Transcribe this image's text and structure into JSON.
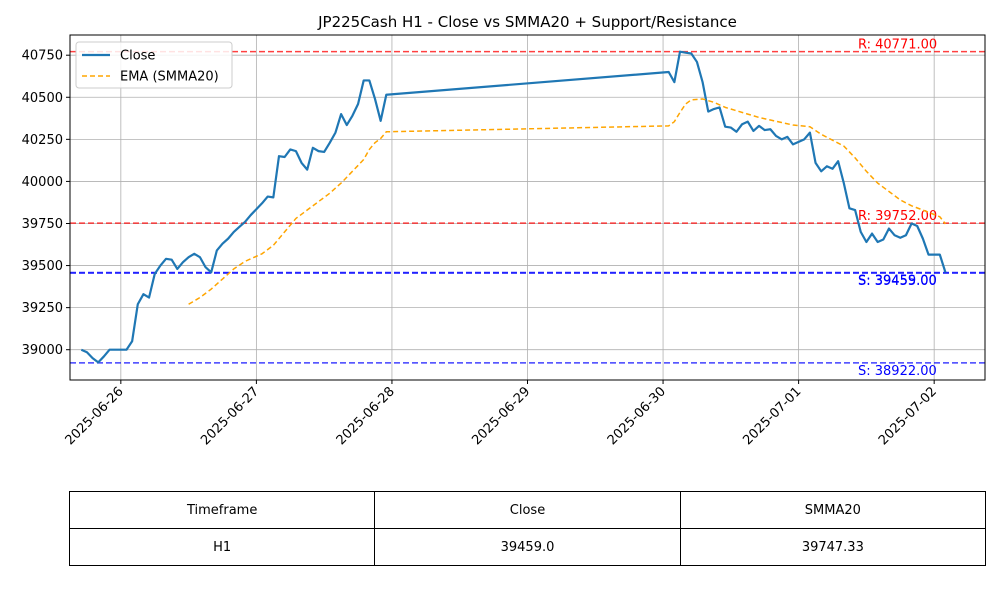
{
  "chart_data": {
    "type": "line",
    "title": "JP225Cash H1 - Close vs SMMA20 + Support/Resistance",
    "xlabel": "",
    "ylabel": "",
    "x_ticks": [
      "2025-06-26",
      "2025-06-27",
      "2025-06-28",
      "2025-06-29",
      "2025-06-30",
      "2025-07-01",
      "2025-07-02"
    ],
    "y_ticks": [
      39000,
      39250,
      39500,
      39750,
      40000,
      40250,
      40500,
      40750
    ],
    "ylim": [
      38820,
      40870
    ],
    "grid": true,
    "legend_position": "top-left",
    "series": [
      {
        "name": "Close",
        "color": "#1f77b4",
        "style": "solid",
        "points": [
          [
            "2025-06-25 17:00",
            39000
          ],
          [
            "2025-06-25 18:00",
            38985
          ],
          [
            "2025-06-25 19:00",
            38950
          ],
          [
            "2025-06-25 20:00",
            38925
          ],
          [
            "2025-06-25 21:00",
            38960
          ],
          [
            "2025-06-25 22:00",
            39000
          ],
          [
            "2025-06-25 23:00",
            39000
          ],
          [
            "2025-06-26 01:00",
            39000
          ],
          [
            "2025-06-26 02:00",
            39050
          ],
          [
            "2025-06-26 03:00",
            39270
          ],
          [
            "2025-06-26 04:00",
            39330
          ],
          [
            "2025-06-26 05:00",
            39310
          ],
          [
            "2025-06-26 06:00",
            39450
          ],
          [
            "2025-06-26 07:00",
            39500
          ],
          [
            "2025-06-26 08:00",
            39540
          ],
          [
            "2025-06-26 09:00",
            39535
          ],
          [
            "2025-06-26 10:00",
            39480
          ],
          [
            "2025-06-26 11:00",
            39520
          ],
          [
            "2025-06-26 12:00",
            39550
          ],
          [
            "2025-06-26 13:00",
            39570
          ],
          [
            "2025-06-26 14:00",
            39550
          ],
          [
            "2025-06-26 15:00",
            39490
          ],
          [
            "2025-06-26 16:00",
            39460
          ],
          [
            "2025-06-26 17:00",
            39590
          ],
          [
            "2025-06-26 18:00",
            39630
          ],
          [
            "2025-06-26 19:00",
            39660
          ],
          [
            "2025-06-26 20:00",
            39700
          ],
          [
            "2025-06-26 21:00",
            39730
          ],
          [
            "2025-06-26 22:00",
            39760
          ],
          [
            "2025-06-26 23:00",
            39800
          ],
          [
            "2025-06-27 01:00",
            39870
          ],
          [
            "2025-06-27 02:00",
            39910
          ],
          [
            "2025-06-27 03:00",
            39905
          ],
          [
            "2025-06-27 04:00",
            40150
          ],
          [
            "2025-06-27 05:00",
            40145
          ],
          [
            "2025-06-27 06:00",
            40190
          ],
          [
            "2025-06-27 07:00",
            40180
          ],
          [
            "2025-06-27 08:00",
            40110
          ],
          [
            "2025-06-27 09:00",
            40070
          ],
          [
            "2025-06-27 10:00",
            40200
          ],
          [
            "2025-06-27 11:00",
            40180
          ],
          [
            "2025-06-27 12:00",
            40175
          ],
          [
            "2025-06-27 13:00",
            40230
          ],
          [
            "2025-06-27 14:00",
            40290
          ],
          [
            "2025-06-27 15:00",
            40400
          ],
          [
            "2025-06-27 16:00",
            40335
          ],
          [
            "2025-06-27 17:00",
            40390
          ],
          [
            "2025-06-27 18:00",
            40460
          ],
          [
            "2025-06-27 19:00",
            40600
          ],
          [
            "2025-06-27 20:00",
            40600
          ],
          [
            "2025-06-27 21:00",
            40490
          ],
          [
            "2025-06-27 22:00",
            40360
          ],
          [
            "2025-06-27 23:00",
            40515
          ],
          [
            "2025-06-30 01:00",
            40650
          ],
          [
            "2025-06-30 02:00",
            40590
          ],
          [
            "2025-06-30 03:00",
            40771
          ],
          [
            "2025-06-30 04:00",
            40765
          ],
          [
            "2025-06-30 05:00",
            40760
          ],
          [
            "2025-06-30 06:00",
            40710
          ],
          [
            "2025-06-30 07:00",
            40590
          ],
          [
            "2025-06-30 08:00",
            40415
          ],
          [
            "2025-06-30 09:00",
            40430
          ],
          [
            "2025-06-30 10:00",
            40440
          ],
          [
            "2025-06-30 11:00",
            40325
          ],
          [
            "2025-06-30 12:00",
            40320
          ],
          [
            "2025-06-30 13:00",
            40295
          ],
          [
            "2025-06-30 14:00",
            40340
          ],
          [
            "2025-06-30 15:00",
            40355
          ],
          [
            "2025-06-30 16:00",
            40300
          ],
          [
            "2025-06-30 17:00",
            40330
          ],
          [
            "2025-06-30 18:00",
            40305
          ],
          [
            "2025-06-30 19:00",
            40310
          ],
          [
            "2025-06-30 20:00",
            40270
          ],
          [
            "2025-06-30 21:00",
            40250
          ],
          [
            "2025-06-30 22:00",
            40265
          ],
          [
            "2025-06-30 23:00",
            40220
          ],
          [
            "2025-07-01 01:00",
            40250
          ],
          [
            "2025-07-01 02:00",
            40290
          ],
          [
            "2025-07-01 03:00",
            40110
          ],
          [
            "2025-07-01 04:00",
            40060
          ],
          [
            "2025-07-01 05:00",
            40090
          ],
          [
            "2025-07-01 06:00",
            40075
          ],
          [
            "2025-07-01 07:00",
            40120
          ],
          [
            "2025-07-01 08:00",
            39990
          ],
          [
            "2025-07-01 09:00",
            39840
          ],
          [
            "2025-07-01 10:00",
            39830
          ],
          [
            "2025-07-01 11:00",
            39700
          ],
          [
            "2025-07-01 12:00",
            39640
          ],
          [
            "2025-07-01 13:00",
            39690
          ],
          [
            "2025-07-01 14:00",
            39640
          ],
          [
            "2025-07-01 15:00",
            39655
          ],
          [
            "2025-07-01 16:00",
            39720
          ],
          [
            "2025-07-01 17:00",
            39680
          ],
          [
            "2025-07-01 18:00",
            39665
          ],
          [
            "2025-07-01 19:00",
            39680
          ],
          [
            "2025-07-01 20:00",
            39750
          ],
          [
            "2025-07-01 21:00",
            39735
          ],
          [
            "2025-07-01 22:00",
            39660
          ],
          [
            "2025-07-01 23:00",
            39565
          ],
          [
            "2025-07-02 01:00",
            39565
          ],
          [
            "2025-07-02 02:00",
            39459
          ]
        ]
      },
      {
        "name": "EMA (SMMA20)",
        "color": "#ffa500",
        "style": "dashed",
        "points": [
          [
            "2025-06-26 12:00",
            39270
          ],
          [
            "2025-06-26 14:00",
            39310
          ],
          [
            "2025-06-26 16:00",
            39360
          ],
          [
            "2025-06-26 18:00",
            39420
          ],
          [
            "2025-06-26 20:00",
            39480
          ],
          [
            "2025-06-26 22:00",
            39525
          ],
          [
            "2025-06-27 01:00",
            39570
          ],
          [
            "2025-06-27 03:00",
            39620
          ],
          [
            "2025-06-27 05:00",
            39700
          ],
          [
            "2025-06-27 07:00",
            39780
          ],
          [
            "2025-06-27 09:00",
            39830
          ],
          [
            "2025-06-27 11:00",
            39880
          ],
          [
            "2025-06-27 13:00",
            39930
          ],
          [
            "2025-06-27 15:00",
            39990
          ],
          [
            "2025-06-27 17:00",
            40060
          ],
          [
            "2025-06-27 19:00",
            40130
          ],
          [
            "2025-06-27 20:00",
            40190
          ],
          [
            "2025-06-27 21:00",
            40230
          ],
          [
            "2025-06-27 22:00",
            40255
          ],
          [
            "2025-06-27 23:00",
            40295
          ],
          [
            "2025-06-30 01:00",
            40330
          ],
          [
            "2025-06-30 02:00",
            40355
          ],
          [
            "2025-06-30 03:00",
            40410
          ],
          [
            "2025-06-30 04:00",
            40460
          ],
          [
            "2025-06-30 05:00",
            40485
          ],
          [
            "2025-06-30 07:00",
            40490
          ],
          [
            "2025-06-30 09:00",
            40470
          ],
          [
            "2025-06-30 11:00",
            40440
          ],
          [
            "2025-06-30 13:00",
            40420
          ],
          [
            "2025-06-30 15:00",
            40400
          ],
          [
            "2025-06-30 17:00",
            40380
          ],
          [
            "2025-06-30 19:00",
            40365
          ],
          [
            "2025-06-30 21:00",
            40350
          ],
          [
            "2025-06-30 23:00",
            40335
          ],
          [
            "2025-07-01 02:00",
            40325
          ],
          [
            "2025-07-01 04:00",
            40280
          ],
          [
            "2025-07-01 06:00",
            40245
          ],
          [
            "2025-07-01 08:00",
            40210
          ],
          [
            "2025-07-01 10:00",
            40140
          ],
          [
            "2025-07-01 12:00",
            40060
          ],
          [
            "2025-07-01 14:00",
            39990
          ],
          [
            "2025-07-01 16:00",
            39940
          ],
          [
            "2025-07-01 18:00",
            39890
          ],
          [
            "2025-07-01 20:00",
            39855
          ],
          [
            "2025-07-01 22:00",
            39830
          ],
          [
            "2025-07-02 01:00",
            39790
          ],
          [
            "2025-07-02 02:00",
            39747.33
          ]
        ]
      }
    ],
    "levels": [
      {
        "kind": "resistance",
        "value": 40771,
        "label": "R: 40771.00",
        "color": "#ff0000"
      },
      {
        "kind": "resistance",
        "value": 39752,
        "label": "R: 39752.00",
        "color": "#ff0000"
      },
      {
        "kind": "support",
        "value": 39459,
        "label": "S: 39459.00",
        "color": "#0000ff"
      },
      {
        "kind": "support",
        "value": 39455,
        "label": "S: 39455.00",
        "color": "#0000ff"
      },
      {
        "kind": "support",
        "value": 38922,
        "label": "S: 38922.00",
        "color": "#0000ff"
      }
    ]
  },
  "table": {
    "headers": [
      "Timeframe",
      "Close",
      "SMMA20"
    ],
    "rows": [
      [
        "H1",
        "39459.0",
        "39747.33"
      ]
    ]
  }
}
